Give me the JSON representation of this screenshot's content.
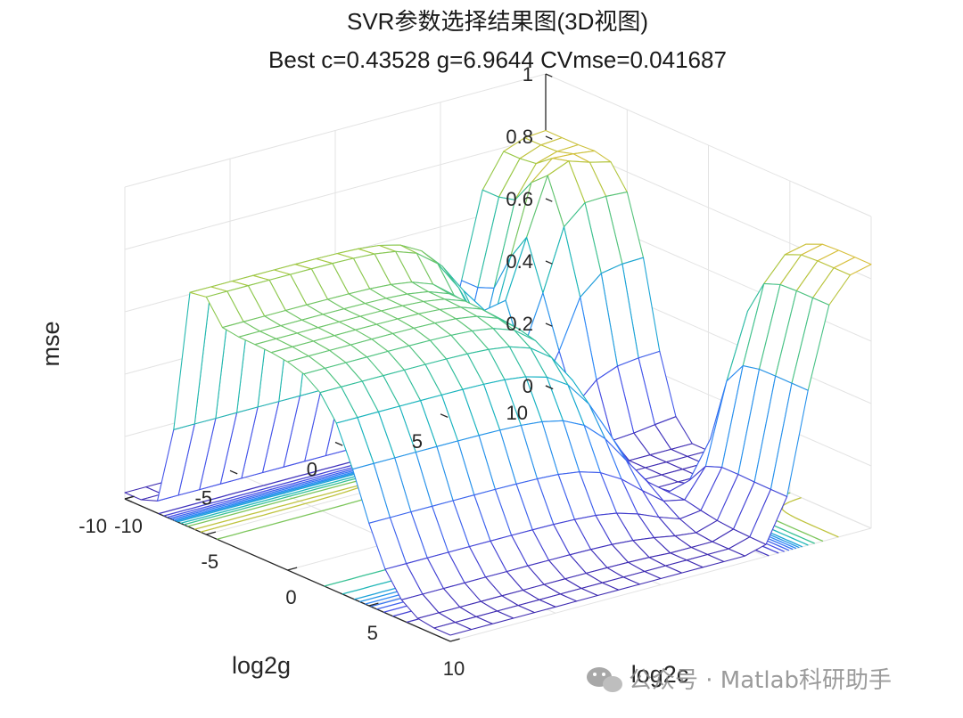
{
  "chart_data": {
    "type": "surface",
    "title": "SVR参数选择结果图(3D视图)",
    "subtitle": "Best c=0.43528 g=6.9644 CVmse=0.041687",
    "xlabel": "log2c",
    "ylabel": "log2g",
    "zlabel": "mse",
    "xlim": [
      -10,
      10
    ],
    "ylim": [
      -10,
      10
    ],
    "zlim": [
      0,
      1
    ],
    "xticks": [
      "-10",
      "-5",
      "0",
      "5",
      "10"
    ],
    "yticks": [
      "-10",
      "-5",
      "0",
      "5",
      "10"
    ],
    "zticks": [
      "0",
      "0.2",
      "0.4",
      "0.6",
      "0.8",
      "1"
    ],
    "grid": true,
    "colormap": "parula",
    "contour_projection": true,
    "best": {
      "c": 0.43528,
      "g": 6.9644,
      "cvmse": 0.041687
    },
    "grid_step": 1,
    "colors": {
      "low": "#3e26a8",
      "mid": "#12b0c8",
      "high": "#f9fb0e"
    }
  },
  "watermark": {
    "icon": "wechat-icon",
    "text": "公众号 · Matlab科研助手"
  }
}
